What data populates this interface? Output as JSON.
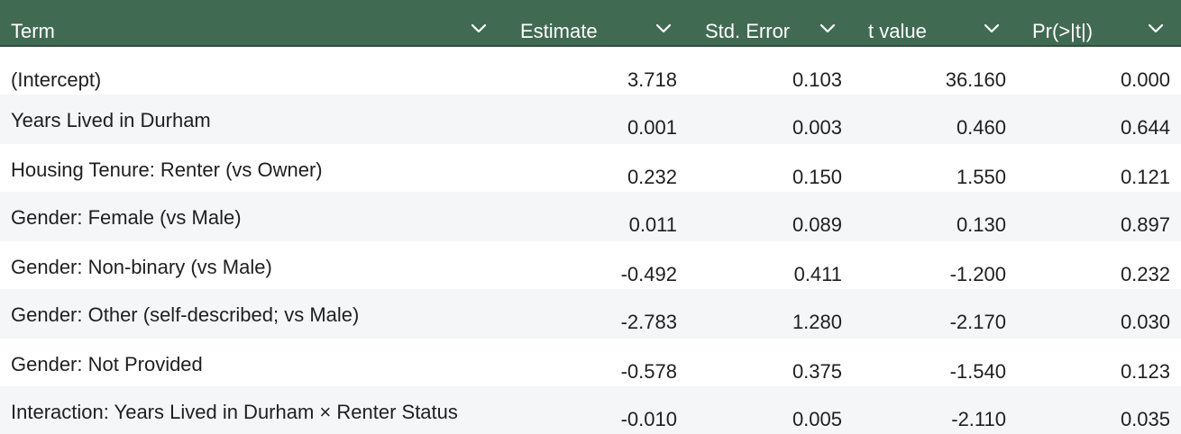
{
  "header": {
    "columns": [
      {
        "label": "Term"
      },
      {
        "label": "Estimate"
      },
      {
        "label": "Std. Error"
      },
      {
        "label": "t value"
      },
      {
        "label": "Pr(>|t|)"
      }
    ]
  },
  "rows": [
    {
      "term": "(Intercept)",
      "estimate": "3.718",
      "std_error": "0.103",
      "t_value": "36.160",
      "p_value": "0.000"
    },
    {
      "term": "Years Lived in Durham",
      "estimate": "0.001",
      "std_error": "0.003",
      "t_value": "0.460",
      "p_value": "0.644"
    },
    {
      "term": "Housing Tenure: Renter (vs Owner)",
      "estimate": "0.232",
      "std_error": "0.150",
      "t_value": "1.550",
      "p_value": "0.121"
    },
    {
      "term": "Gender: Female (vs Male)",
      "estimate": "0.011",
      "std_error": "0.089",
      "t_value": "0.130",
      "p_value": "0.897"
    },
    {
      "term": "Gender: Non-binary (vs Male)",
      "estimate": "-0.492",
      "std_error": "0.411",
      "t_value": "-1.200",
      "p_value": "0.232"
    },
    {
      "term": "Gender: Other (self-described; vs Male)",
      "estimate": "-2.783",
      "std_error": "1.280",
      "t_value": "-2.170",
      "p_value": "0.030"
    },
    {
      "term": "Gender: Not Provided",
      "estimate": "-0.578",
      "std_error": "0.375",
      "t_value": "-1.540",
      "p_value": "0.123"
    },
    {
      "term": "Interaction: Years Lived in Durham × Renter Status",
      "estimate": "-0.010",
      "std_error": "0.005",
      "t_value": "-2.110",
      "p_value": "0.035"
    }
  ]
}
